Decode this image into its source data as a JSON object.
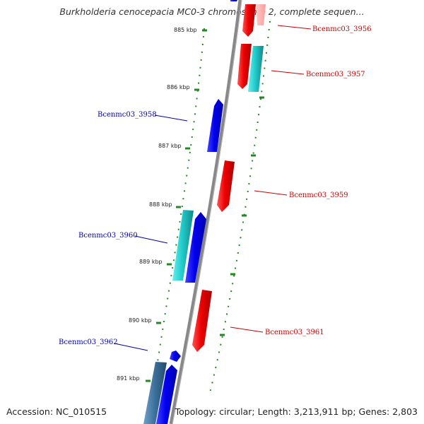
{
  "title": "Burkholderia cenocepacia MC0-3 chromosome 2, complete sequen...",
  "footer": {
    "accession": "Accession: NC_010515",
    "topology": "Topology: circular; Length: 3,213,911 bp; Genes: 2,803"
  },
  "colors": {
    "forward_gene": "#0000ee",
    "reverse_gene": "#ee0000",
    "forward_rna_like": "#22cccc",
    "backbone": "#888888",
    "tick_dots": "#228822",
    "forward_label": "#0000aa",
    "reverse_label": "#cc0000"
  },
  "scale_labels": [
    "885 kbp",
    "886 kbp",
    "887 kbp",
    "888 kbp",
    "889 kbp",
    "890 kbp",
    "891 kbp"
  ],
  "genes": [
    {
      "id": "Bcenmc03_3956",
      "strand": "reverse"
    },
    {
      "id": "Bcenmc03_3957",
      "strand": "reverse"
    },
    {
      "id": "Bcenmc03_3958",
      "strand": "forward"
    },
    {
      "id": "Bcenmc03_3959",
      "strand": "reverse"
    },
    {
      "id": "Bcenmc03_3960",
      "strand": "forward"
    },
    {
      "id": "Bcenmc03_3961",
      "strand": "reverse"
    },
    {
      "id": "Bcenmc03_3962",
      "strand": "forward"
    }
  ]
}
